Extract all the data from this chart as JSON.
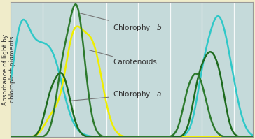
{
  "ylabel": "Absorbance of light by\nchloroplast pigments",
  "outer_bg": "#f0ecca",
  "plot_bg": "#c5dada",
  "grid_color": "#daeaea",
  "xlim": [
    350,
    730
  ],
  "ylim": [
    0,
    1.05
  ],
  "chlorophyll_b_color": "#2d7a2d",
  "chlorophyll_a_color": "#1e6b1e",
  "carotenoids_color": "#eeee00",
  "cyan_color": "#30c8c8",
  "label_color": "#333333",
  "lw": 1.8,
  "ylabel_fontsize": 6.5,
  "ann_fontsize": 7.5
}
